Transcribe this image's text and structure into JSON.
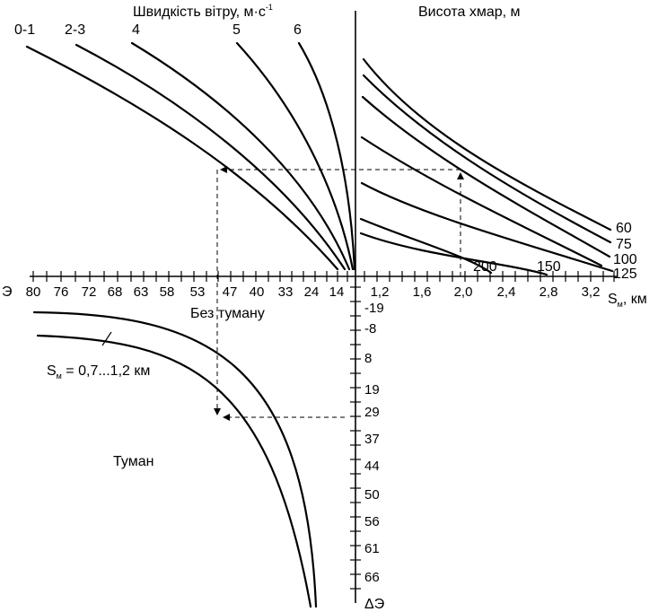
{
  "titles": {
    "wind_speed": "Швидкість вітру, м·с",
    "wind_speed_sup": "-1",
    "cloud_height": "Висота хмар, м"
  },
  "wind_speed_labels": [
    "0-1",
    "2-3",
    "4",
    "5",
    "6"
  ],
  "cloud_height_labels": [
    "60",
    "75",
    "100",
    "125"
  ],
  "wind_small_labels": [
    "200",
    "150"
  ],
  "left_axis": {
    "name": "Э",
    "ticks": [
      "80",
      "76",
      "72",
      "68",
      "63",
      "58",
      "53",
      "47",
      "40",
      "33",
      "24",
      "14"
    ]
  },
  "right_axis": {
    "ticks": [
      "1,2",
      "1,6",
      "2,0",
      "2,4",
      "2,8",
      "3,2"
    ],
    "label_main": "S",
    "label_sub": "м",
    "label_unit": ", км"
  },
  "vertical_axis": {
    "name": "ΔЭ",
    "ticks": [
      "-19",
      "-8",
      "8",
      "19",
      "29",
      "37",
      "44",
      "50",
      "56",
      "61",
      "66"
    ]
  },
  "regions": {
    "no_fog": "Без туману",
    "fog": "Туман"
  },
  "range_label": {
    "main": "S",
    "sub": "м",
    "rest": " = 0,7...1,2 км"
  }
}
